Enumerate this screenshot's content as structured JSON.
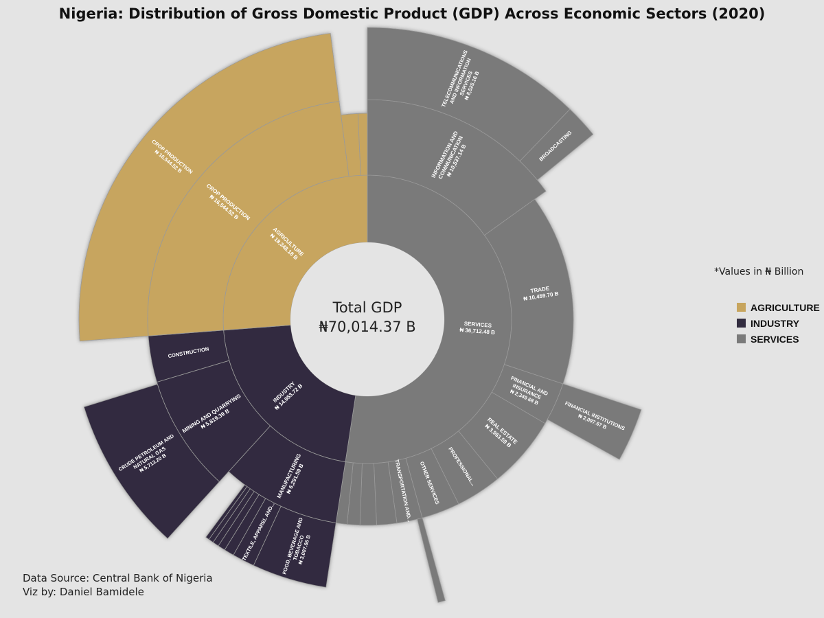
{
  "title": "Nigeria: Distribution of Gross Domestic Product (GDP) Across Economic Sectors (2020)",
  "center": {
    "label": "Total GDP",
    "value": "₦70,014.37 B"
  },
  "note": "*Values in  ₦ Billion",
  "legend": [
    {
      "label": "AGRICULTURE",
      "color": "#c7a55e"
    },
    {
      "label": "INDUSTRY",
      "color": "#322c3f"
    },
    {
      "label": "SERVICES",
      "color": "#7a7a7a"
    }
  ],
  "credits": {
    "source": "Data Source: Central Bank of Nigeria",
    "author": "Viz by: Daniel Bamidele"
  },
  "chart_data": {
    "type": "sunburst",
    "total": 70014.37,
    "unit": "₦ Billion",
    "colors": {
      "AGRICULTURE": "#c7a55e",
      "INDUSTRY": "#322c3f",
      "SERVICES": "#7a7a7a"
    },
    "sectors": [
      {
        "name": "SERVICES",
        "label": "SERVICES",
        "value_label": "₦ 36,712.48 B",
        "value": 36712.48,
        "children": [
          {
            "name": "INFORMATION AND COMMUNICATION",
            "label": [
              "INFORMATION AND",
              "COMMUNICATION"
            ],
            "value_label": "₦ 10,537.14 B",
            "value": 10537.14,
            "children": [
              {
                "label": [
                  "TELECOMMUNICATIONS",
                  "AND INFORMATION",
                  "SERVICES"
                ],
                "value_label": "₦ 8,525.16 B",
                "value": 8525.16
              },
              {
                "label": [
                  "BROADCASTING"
                ],
                "value_label": "",
                "value": 1300
              }
            ]
          },
          {
            "name": "TRADE",
            "label": [
              "TRADE"
            ],
            "value_label": "₦ 10,459.70 B",
            "value": 10459.7
          },
          {
            "name": "FINANCIAL AND INSURANCE",
            "label": [
              "FINANCIAL AND",
              "INSURANCE"
            ],
            "value_label": "₦ 2,349.68 B",
            "value": 2349.68,
            "children": [
              {
                "label": [
                  "FINANCIAL INSTITUTIONS"
                ],
                "value_label": "₦ 2,097.67 B",
                "value": 2097.67
              }
            ]
          },
          {
            "name": "REAL ESTATE",
            "label": [
              "REAL ESTATE"
            ],
            "value_label": "₦ 3,963.59 B",
            "value": 3963.59
          },
          {
            "name": "PROFESSIONAL...",
            "label": [
              "PROFESSIONAL..."
            ],
            "value_label": "",
            "value": 2500
          },
          {
            "name": "OTHER SERVICES",
            "label": [
              "OTHER SERVICES"
            ],
            "value_label": "",
            "value": 2100
          },
          {
            "name": "TRANSPORTATION AND...",
            "label": [
              "TRANSPORTATION AND..."
            ],
            "value_label": "",
            "value": 1400,
            "children": [
              {
                "label": [],
                "value_label": "",
                "value": 280
              }
            ]
          },
          {
            "name": "other-minor-1",
            "label": [],
            "value_label": "",
            "value": 1100
          },
          {
            "name": "other-minor-2",
            "label": [],
            "value_label": "",
            "value": 900
          },
          {
            "name": "other-minor-3",
            "label": [],
            "value_label": "",
            "value": 700
          },
          {
            "name": "other-minor-4",
            "label": [],
            "value_label": "",
            "value": 600
          }
        ]
      },
      {
        "name": "INDUSTRY",
        "label": "INDUSTRY",
        "value_label": "₦ 14,953.72 B",
        "value": 14953.72,
        "children": [
          {
            "name": "MANUFACTURING",
            "label": [
              "MANUFACTURING"
            ],
            "value_label": "₦ 6,291.59 B",
            "value": 6291.59,
            "children": [
              {
                "label": [
                  "FOOD, BEVERAGE AND",
                  "TOBACCO"
                ],
                "value_label": "₦ 3,007.66 B",
                "value": 3007.66
              },
              {
                "label": [
                  "TEXTILE, APPAREL AND..."
                ],
                "value_label": "",
                "value": 900
              },
              {
                "label": [],
                "value_label": "",
                "value": 400
              },
              {
                "label": [],
                "value_label": "",
                "value": 300
              },
              {
                "label": [],
                "value_label": "",
                "value": 250
              },
              {
                "label": [],
                "value_label": "",
                "value": 200
              },
              {
                "label": [],
                "value_label": "",
                "value": 150
              }
            ]
          },
          {
            "name": "MINING AND QUARRYING",
            "label": [
              "MINING AND QUARRYING"
            ],
            "value_label": "₦ 5,819.39 B",
            "value": 5819.39,
            "children": [
              {
                "label": [
                  "CRUDE PETROLEUM AND",
                  "NATURAL GAS"
                ],
                "value_label": "₦ 5,713.20 B",
                "value": 5713.2
              }
            ]
          },
          {
            "name": "CONSTRUCTION",
            "label": [
              "CONSTRUCTION"
            ],
            "value_label": "",
            "value": 2300
          }
        ]
      },
      {
        "name": "AGRICULTURE",
        "label": "AGRICULTURE",
        "value_label": "₦ 18,348.18 B",
        "value": 18348.18,
        "children": [
          {
            "name": "CROP PRODUCTION",
            "label": [
              "CROP PRODUCTION"
            ],
            "value_label": "₦ 16,544.52 B",
            "value": 16544.52,
            "children": [
              {
                "label": [
                  "CROP PRODUCTION"
                ],
                "value_label": "₦ 16,544.52 B",
                "value": 16544.52
              }
            ]
          },
          {
            "name": "agri-minor-1",
            "label": [],
            "value_label": "",
            "value": 900
          },
          {
            "name": "agri-minor-2",
            "label": [],
            "value_label": "",
            "value": 500
          }
        ]
      }
    ]
  }
}
